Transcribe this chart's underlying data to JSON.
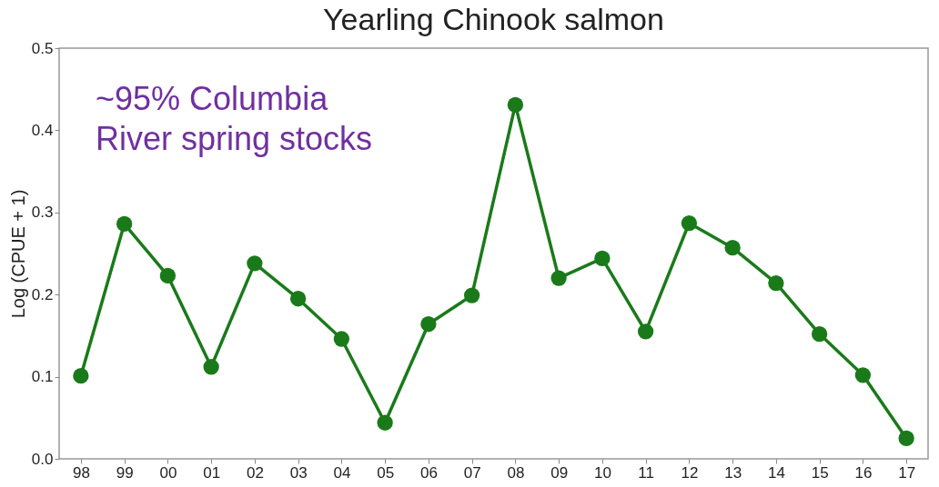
{
  "chart_data": {
    "type": "line",
    "title": "Yearling Chinook salmon",
    "ylabel": "Log (CPUE + 1)",
    "categories": [
      "98",
      "99",
      "00",
      "01",
      "02",
      "03",
      "04",
      "05",
      "06",
      "07",
      "08",
      "09",
      "10",
      "11",
      "12",
      "13",
      "14",
      "15",
      "16",
      "17"
    ],
    "series": [
      {
        "color": "#1a7a1a",
        "values": [
          0.101,
          0.286,
          0.223,
          0.112,
          0.238,
          0.195,
          0.146,
          0.044,
          0.164,
          0.199,
          0.431,
          0.22,
          0.244,
          0.155,
          0.287,
          0.257,
          0.214,
          0.152,
          0.102,
          0.025
        ]
      }
    ],
    "ylim": [
      0,
      0.5
    ],
    "yticks": [
      {
        "value": 0,
        "label": "0.0"
      },
      {
        "value": 0.1,
        "label": "0.1"
      },
      {
        "value": 0.2,
        "label": "0.2"
      },
      {
        "value": 0.3,
        "label": "0.3"
      },
      {
        "value": 0.4,
        "label": "0.4"
      },
      {
        "value": 0.5,
        "label": "0.5"
      }
    ],
    "grid": false,
    "marker": "circle",
    "line_style": "solid",
    "annotations": [
      "~95% Columbia\nRiver spring stocks"
    ]
  }
}
